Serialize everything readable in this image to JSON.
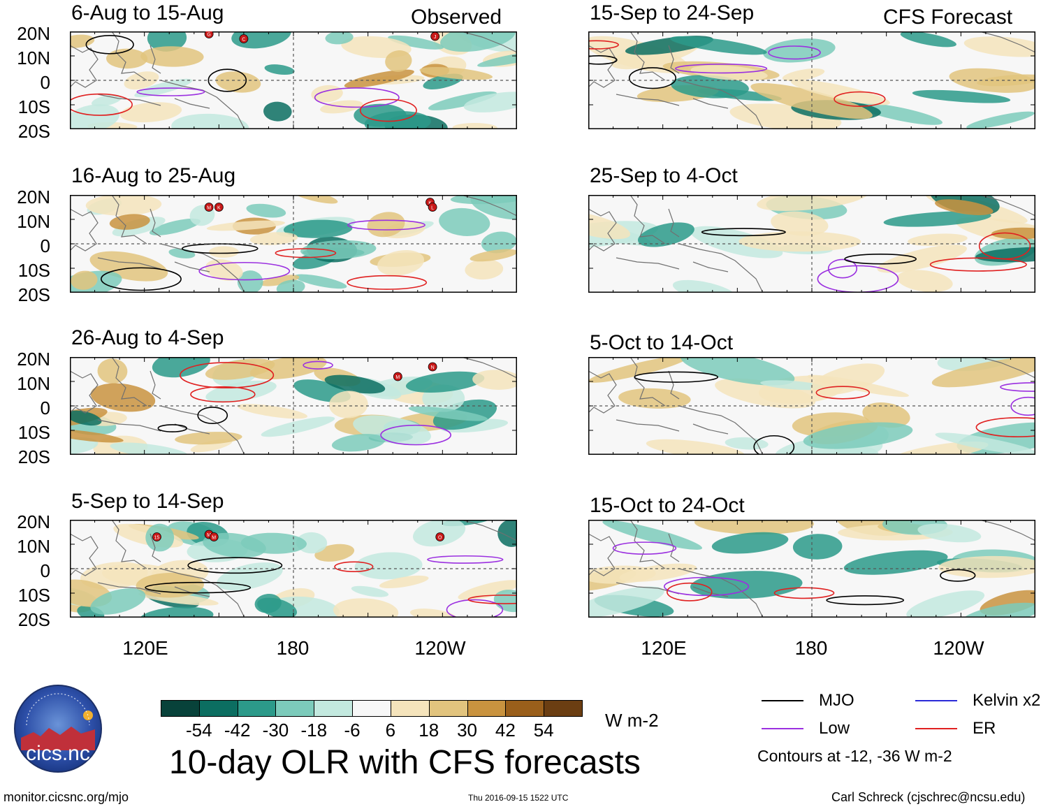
{
  "headers": {
    "observed": "Observed",
    "forecast": "CFS Forecast"
  },
  "panels": {
    "observed": [
      {
        "title": "6-Aug to 15-Aug",
        "markers": [
          {
            "label": "G",
            "lon": 146,
            "lat": 19
          },
          {
            "label": "C",
            "lon": 160,
            "lat": 17
          },
          {
            "label": "J",
            "lon": 237,
            "lat": 18
          }
        ]
      },
      {
        "title": "16-Aug to 25-Aug",
        "markers": [
          {
            "label": "M",
            "lon": 146,
            "lat": 15
          },
          {
            "label": "K",
            "lon": 150,
            "lat": 15
          },
          {
            "label": "K",
            "lon": 235,
            "lat": 17
          },
          {
            "label": "L",
            "lon": 236,
            "lat": 15
          }
        ]
      },
      {
        "title": "26-Aug to 4-Sep",
        "markers": [
          {
            "label": "M",
            "lon": 222,
            "lat": 12
          },
          {
            "label": "N",
            "lon": 236,
            "lat": 16
          }
        ]
      },
      {
        "title": "5-Sep to 14-Sep",
        "markers": [
          {
            "label": "15",
            "lon": 125,
            "lat": 13
          },
          {
            "label": "M",
            "lon": 146,
            "lat": 14
          },
          {
            "label": "M",
            "lon": 148,
            "lat": 13
          },
          {
            "label": "O",
            "lon": 239,
            "lat": 13
          }
        ]
      }
    ],
    "forecast": [
      {
        "title": "15-Sep to 24-Sep",
        "markers": []
      },
      {
        "title": "25-Sep to 4-Oct",
        "markers": []
      },
      {
        "title": "5-Oct to 14-Oct",
        "markers": []
      },
      {
        "title": "15-Oct to 24-Oct",
        "markers": []
      }
    ]
  },
  "axes": {
    "lat_labels": [
      "20N",
      "10N",
      "0",
      "10S",
      "20S"
    ],
    "lon_labels": [
      "120E",
      "180",
      "120W"
    ],
    "lon_range": [
      90,
      270
    ],
    "lat_range": [
      -20,
      20
    ]
  },
  "colorbar": {
    "colors": [
      "#08423a",
      "#0c6e61",
      "#2c9a8a",
      "#7ccbbb",
      "#c3e9df",
      "#f7f7f7",
      "#f5e4bc",
      "#e2c47e",
      "#c9933f",
      "#9a5f1b",
      "#6b3e12"
    ],
    "labels": [
      "-54",
      "-42",
      "-30",
      "-18",
      "-6",
      "6",
      "18",
      "30",
      "42",
      "54"
    ],
    "units": "W m-2"
  },
  "legend": {
    "items": [
      {
        "label": "MJO",
        "color": "#000000"
      },
      {
        "label": "Kelvin x2",
        "color": "#2a2ad8"
      },
      {
        "label": "Low",
        "color": "#9b30e0"
      },
      {
        "label": "ER",
        "color": "#e02020"
      }
    ],
    "note": "Contours at -12, -36 W m-2"
  },
  "main_title": "10-day OLR with CFS forecasts",
  "footer": {
    "url": "monitor.cicsnc.org/mjo",
    "timestamp": "Thu 2016-09-15 1522 UTC",
    "credit": "Carl Schreck (cjschrec@ncsu.edu)"
  },
  "logo": {
    "name": "cics.nc",
    "ring_text": "Cooperative Institute for Climate and Satellites"
  }
}
